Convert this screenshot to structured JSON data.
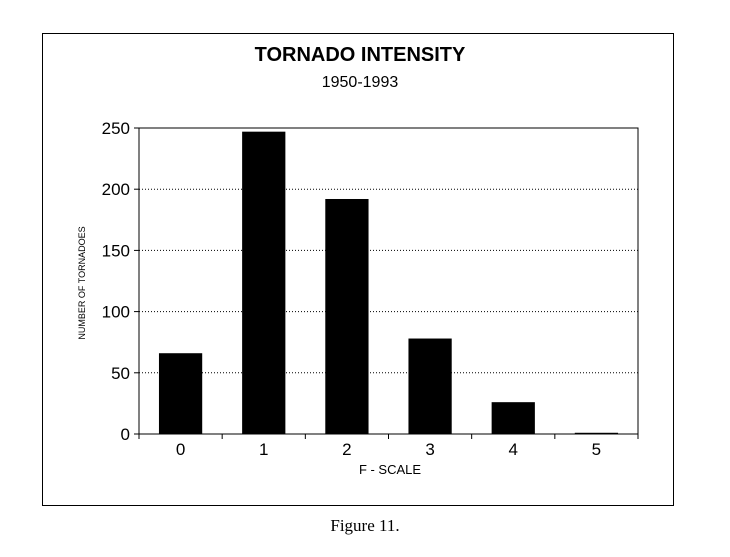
{
  "chart_data": {
    "type": "bar",
    "title": "TORNADO INTENSITY",
    "subtitle": "1950-1993",
    "xlabel": "F - SCALE",
    "ylabel": "NUMBER OF TORNADOES",
    "categories": [
      "0",
      "1",
      "2",
      "3",
      "4",
      "5"
    ],
    "values": [
      66,
      247,
      192,
      78,
      26,
      1
    ],
    "ylim": [
      0,
      250
    ],
    "yticks": [
      "0",
      "50",
      "100",
      "150",
      "200",
      "250"
    ],
    "grid": true,
    "bar_color": "#000000"
  },
  "figure_caption": "Figure 11."
}
